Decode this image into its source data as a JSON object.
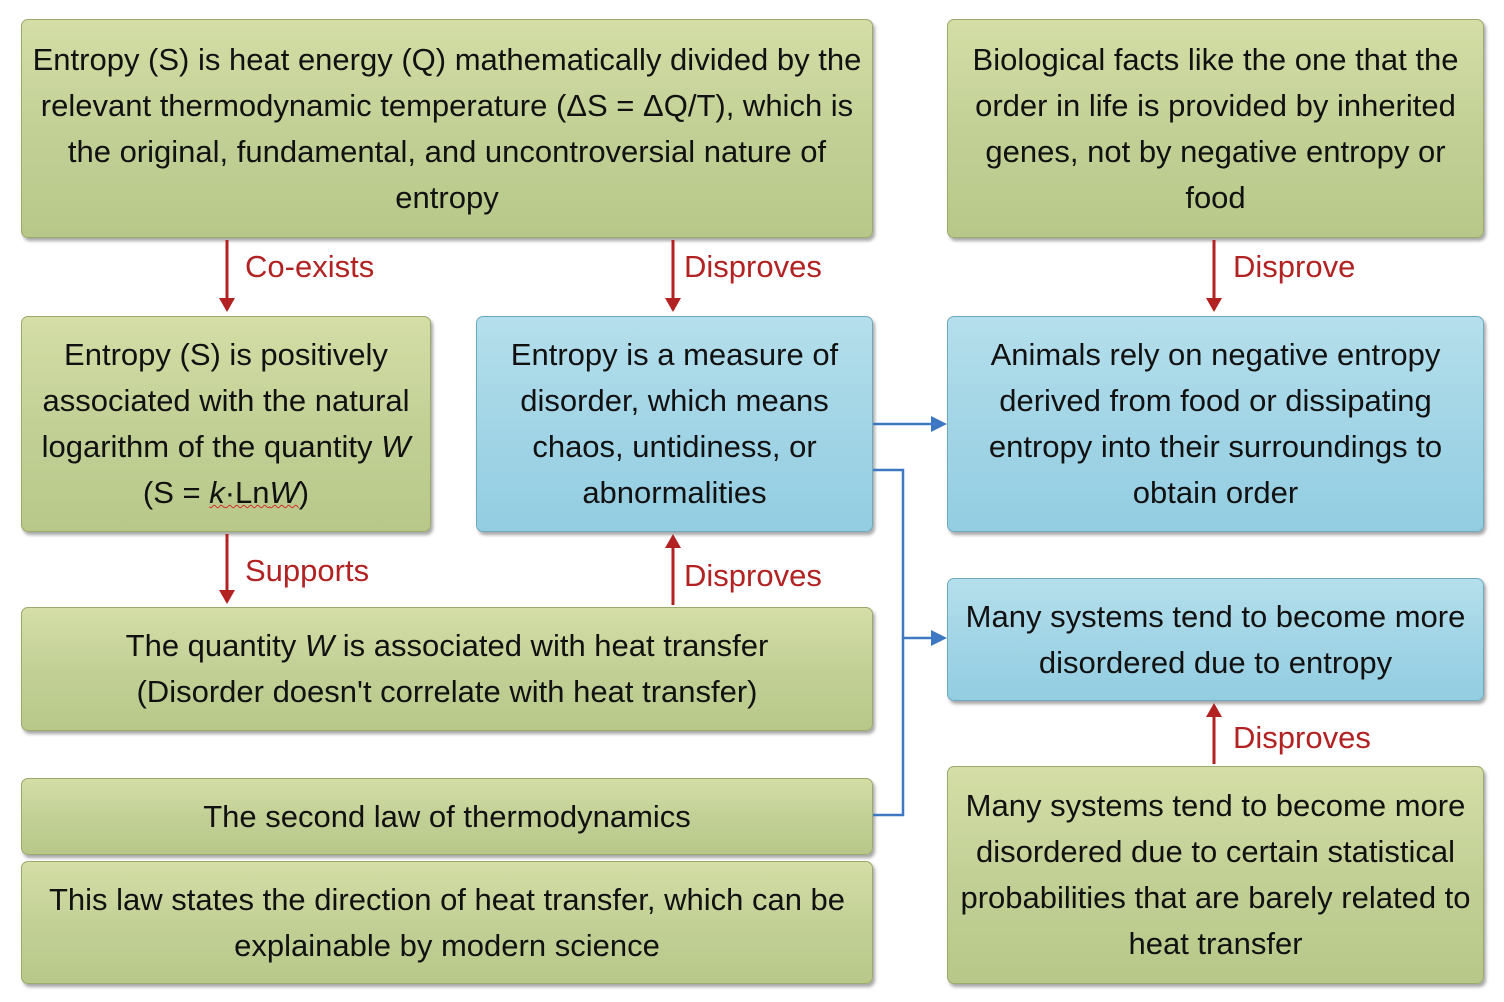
{
  "boxes": {
    "entropy_heat": "Entropy (S) is heat energy (Q) mathematically divided by the relevant thermodynamic temperature (ΔS = ΔQ/T), which is the original, fundamental, and uncontroversial nature of entropy",
    "biological_facts": "Biological facts like the one that the order in life is provided by inherited genes, not by negative entropy or food",
    "log_w_prefix": "Entropy (S) is positively associated with the natural logarithm of the quantity ",
    "log_w_var": "W",
    "log_w_formula_open": " (S = ",
    "log_w_k": "k",
    "log_w_ln": "·Ln",
    "log_w_formula_close": ")",
    "disorder_measure": "Entropy is a measure of disorder, which means chaos, untidiness, or abnormalities",
    "animals_negative_entropy": "Animals rely on negative entropy derived from food or dissipating entropy into their surroundings to obtain order",
    "quantity_w_prefix": "The quantity ",
    "quantity_w_var": "W",
    "quantity_w_suffix": " is associated with heat transfer",
    "quantity_w_line2": "(Disorder doesn't correlate with heat transfer)",
    "systems_disordered_entropy": "Many systems tend to become more disordered due to entropy",
    "second_law": "The second law of thermodynamics",
    "law_direction": "This law states the direction of heat transfer, which can be explainable by modern science",
    "systems_statistical": "Many systems tend to become more disordered due to certain statistical probabilities that are barely related to heat transfer"
  },
  "labels": {
    "coexists": "Co-exists",
    "disproves_top": "Disproves",
    "disprove_right": "Disprove",
    "supports": "Supports",
    "disproves_mid": "Disproves",
    "disproves_bottom": "Disproves"
  },
  "colors": {
    "green_box": "#c2d096",
    "blue_box": "#a2d5e6",
    "red_arrow": "#b22222",
    "blue_connector": "#3f78c2"
  }
}
